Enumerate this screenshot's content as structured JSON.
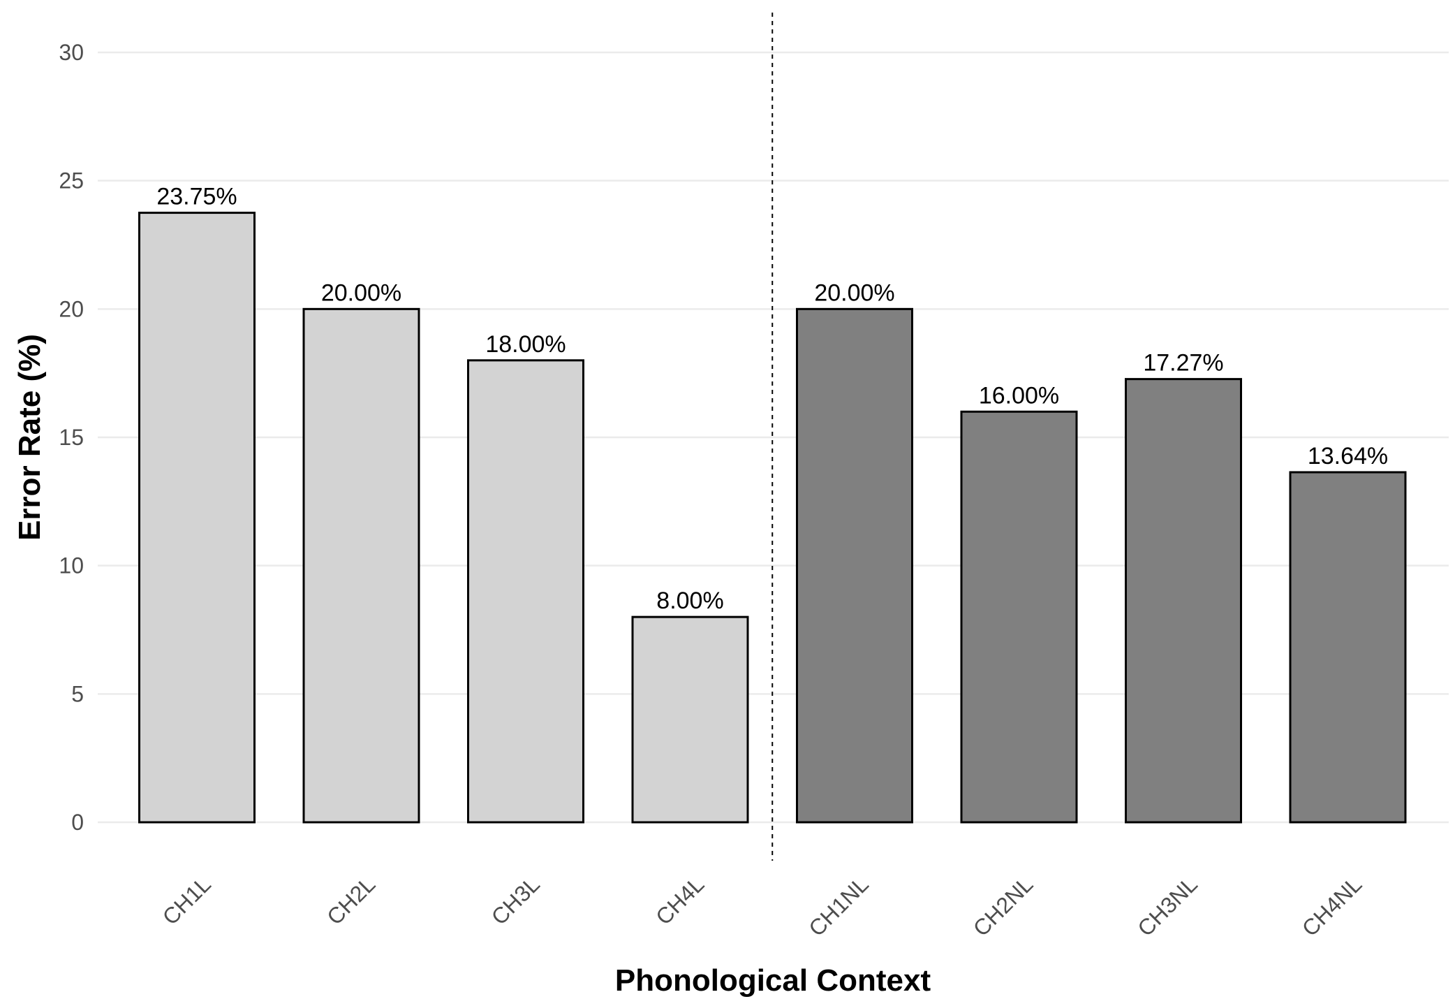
{
  "chart_data": {
    "type": "bar",
    "categories": [
      "CH1L",
      "CH2L",
      "CH3L",
      "CH4L",
      "CH1NL",
      "CH2NL",
      "CH3NL",
      "CH4NL"
    ],
    "values": [
      23.75,
      20.0,
      18.0,
      8.0,
      20.0,
      16.0,
      17.27,
      13.64
    ],
    "value_labels": [
      "23.75%",
      "20.00%",
      "18.00%",
      "8.00%",
      "20.00%",
      "16.00%",
      "17.27%",
      "13.64%"
    ],
    "groups": [
      "L",
      "L",
      "L",
      "L",
      "NL",
      "NL",
      "NL",
      "NL"
    ],
    "group_colors": {
      "L": "#d3d3d3",
      "NL": "#808080"
    },
    "title": "",
    "xlabel": "Phonological Context",
    "ylabel": "Error Rate (%)",
    "ylim": [
      0,
      30
    ],
    "yticks": [
      0,
      5,
      10,
      15,
      20,
      25,
      30
    ],
    "grid": true,
    "legend": "none",
    "divider_after_category": "CH4L"
  }
}
